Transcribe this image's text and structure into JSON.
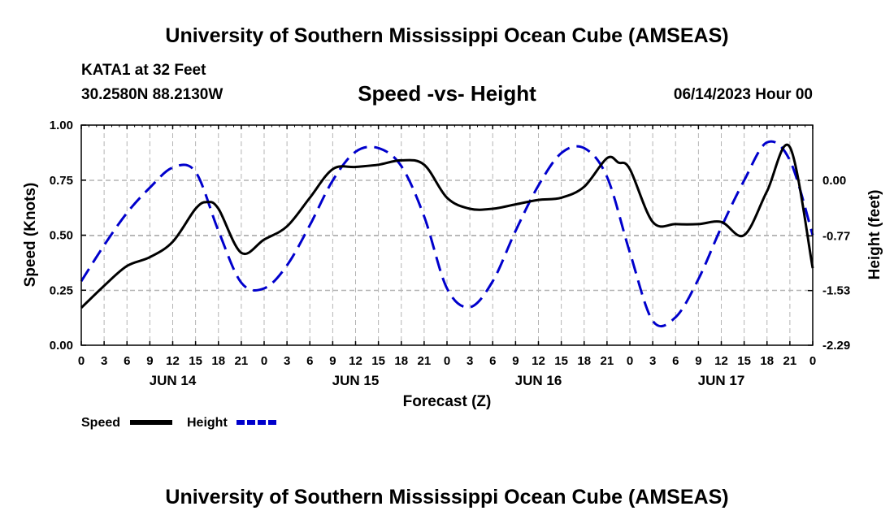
{
  "header": {
    "title": "University of Southern Mississippi Ocean Cube (AMSEAS)",
    "station": "KATA1 at 32 Feet",
    "coords": "30.2580N  88.2130W",
    "subtitle": "Speed -vs- Height",
    "datetime": "06/14/2023 Hour 00"
  },
  "footer": {
    "title": "University of Southern Mississippi Ocean Cube (AMSEAS)"
  },
  "chart_data": {
    "type": "line",
    "title": "Speed -vs- Height",
    "xlabel": "Forecast (Z)",
    "ylabel": "Speed (Knots)",
    "y2label": "Height (feet)",
    "xlim": [
      0,
      96
    ],
    "ylim": [
      0,
      1
    ],
    "y2lim": [
      -2.29,
      0.77
    ],
    "x_ticks": [
      0,
      3,
      6,
      9,
      12,
      15,
      18,
      21,
      24,
      27,
      30,
      33,
      36,
      39,
      42,
      45,
      48,
      51,
      54,
      57,
      60,
      63,
      66,
      69,
      72,
      75,
      78,
      81,
      84,
      87,
      90,
      93,
      96
    ],
    "x_tick_labels": [
      "0",
      "3",
      "6",
      "9",
      "12",
      "15",
      "18",
      "21",
      "0",
      "3",
      "6",
      "9",
      "12",
      "15",
      "18",
      "21",
      "0",
      "3",
      "6",
      "9",
      "12",
      "15",
      "18",
      "21",
      "0",
      "3",
      "6",
      "9",
      "12",
      "15",
      "18",
      "21",
      "0"
    ],
    "day_labels": [
      {
        "x": 12,
        "label": "JUN 14"
      },
      {
        "x": 36,
        "label": "JUN 15"
      },
      {
        "x": 60,
        "label": "JUN 16"
      },
      {
        "x": 84,
        "label": "JUN 17"
      }
    ],
    "y_ticks": [
      0,
      0.25,
      0.5,
      0.75,
      1
    ],
    "y_tick_labels": [
      "0.00",
      "0.25",
      "0.50",
      "0.75",
      "1.00"
    ],
    "y2_ticks": [
      0.0,
      -0.77,
      -1.53,
      -2.29
    ],
    "y2_tick_labels": [
      "0.00",
      "-0.77",
      "-1.53",
      "-2.29"
    ],
    "grid": true,
    "legend_position": "bottom-left",
    "series": [
      {
        "name": "Speed",
        "axis": "left",
        "color": "#000000",
        "dash": "solid",
        "x": [
          0,
          3,
          6,
          9,
          12,
          15,
          16.5,
          18,
          21,
          24,
          27,
          30,
          33,
          36,
          39,
          42,
          45,
          48,
          51,
          54,
          57,
          60,
          63,
          66,
          69,
          70.5,
          72,
          75,
          78,
          81,
          84,
          87,
          90,
          93,
          96
        ],
        "values": [
          0.17,
          0.27,
          0.36,
          0.4,
          0.47,
          0.62,
          0.65,
          0.62,
          0.42,
          0.48,
          0.54,
          0.67,
          0.8,
          0.81,
          0.82,
          0.84,
          0.82,
          0.67,
          0.62,
          0.62,
          0.64,
          0.66,
          0.67,
          0.72,
          0.85,
          0.83,
          0.8,
          0.56,
          0.55,
          0.55,
          0.56,
          0.5,
          0.7,
          0.9,
          0.35
        ]
      },
      {
        "name": "Height",
        "axis": "right",
        "color": "#0000cc",
        "dash": "dashed",
        "x": [
          0,
          3,
          6,
          9,
          12,
          15,
          18,
          21,
          24,
          27,
          30,
          33,
          36,
          39,
          42,
          45,
          48,
          51,
          54,
          57,
          60,
          63,
          66,
          69,
          72,
          75,
          78,
          81,
          84,
          87,
          90,
          93,
          96
        ],
        "values": [
          -1.4,
          -0.9,
          -0.45,
          -0.1,
          0.18,
          0.12,
          -0.7,
          -1.42,
          -1.5,
          -1.18,
          -0.62,
          0.0,
          0.4,
          0.45,
          0.2,
          -0.5,
          -1.5,
          -1.76,
          -1.4,
          -0.7,
          -0.07,
          0.38,
          0.45,
          0.05,
          -1.0,
          -1.95,
          -1.9,
          -1.37,
          -0.65,
          0.0,
          0.53,
          0.28,
          -0.76
        ]
      }
    ],
    "legend": [
      {
        "label": "Speed",
        "color": "#000000",
        "dash": "solid"
      },
      {
        "label": "Height",
        "color": "#0000cc",
        "dash": "dashed"
      }
    ]
  }
}
